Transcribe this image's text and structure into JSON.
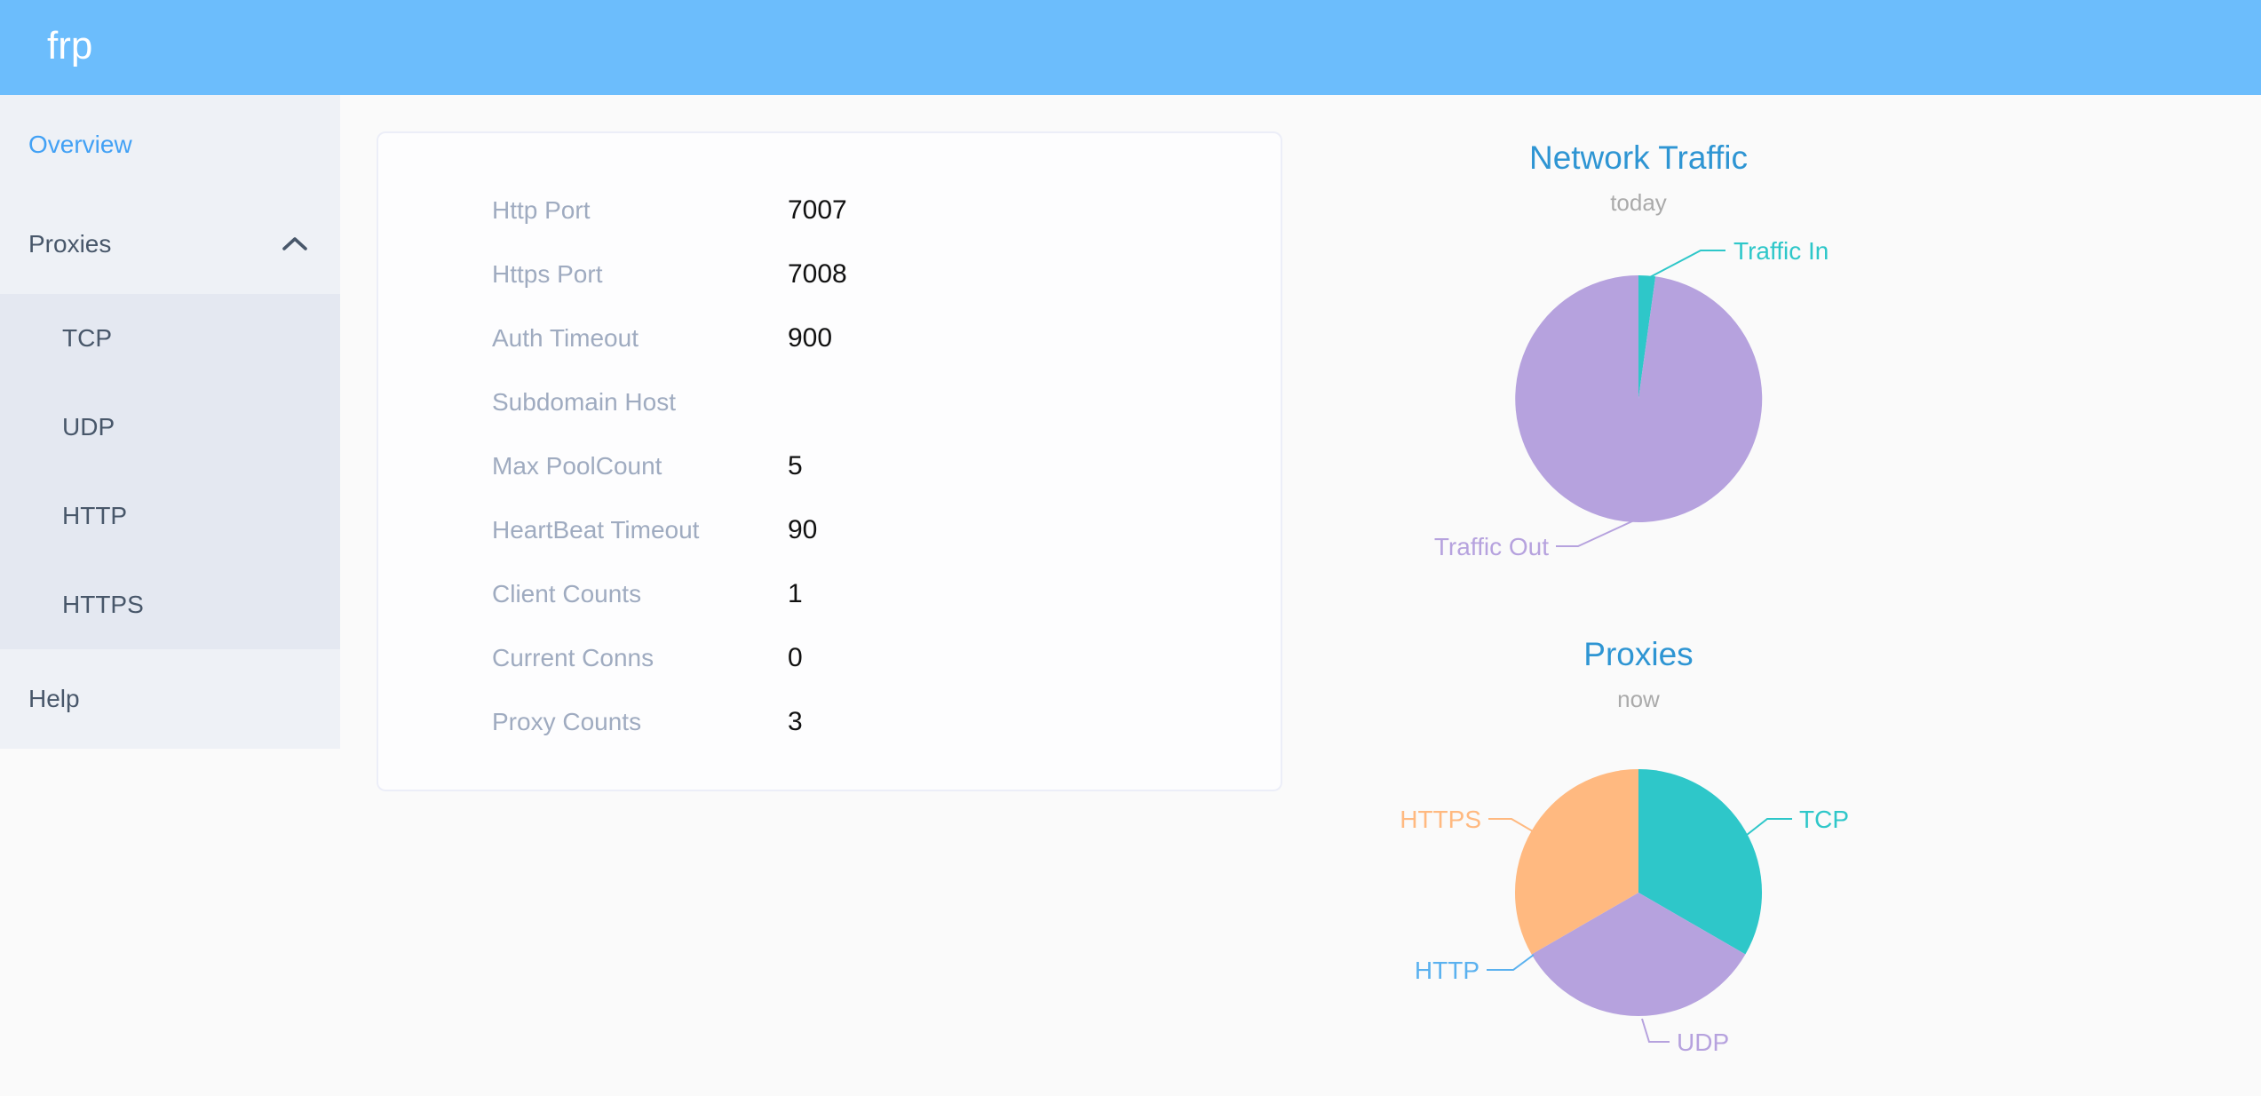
{
  "header": {
    "logo": "frp"
  },
  "sidebar": {
    "items": [
      {
        "label": "Overview",
        "active": true
      },
      {
        "label": "Proxies",
        "expanded": true,
        "children": [
          {
            "label": "TCP"
          },
          {
            "label": "UDP"
          },
          {
            "label": "HTTP"
          },
          {
            "label": "HTTPS"
          }
        ]
      },
      {
        "label": "Help"
      }
    ]
  },
  "server_info": {
    "rows": [
      {
        "label": "Http Port",
        "value": "7007"
      },
      {
        "label": "Https Port",
        "value": "7008"
      },
      {
        "label": "Auth Timeout",
        "value": "900"
      },
      {
        "label": "Subdomain Host",
        "value": ""
      },
      {
        "label": "Max PoolCount",
        "value": "5"
      },
      {
        "label": "HeartBeat Timeout",
        "value": "90"
      },
      {
        "label": "Client Counts",
        "value": "1"
      },
      {
        "label": "Current Conns",
        "value": "0"
      },
      {
        "label": "Proxy Counts",
        "value": "3"
      }
    ]
  },
  "chart_data": [
    {
      "type": "pie",
      "title": "Network Traffic",
      "subtitle": "today",
      "labels": [
        "Traffic In",
        "Traffic Out"
      ],
      "values": [
        2.2,
        97.8
      ],
      "colors": [
        "#2ec7c9",
        "#b6a2de"
      ],
      "start_angle": "top",
      "direction": "clockwise",
      "legend_position": "callout-labels"
    },
    {
      "type": "pie",
      "title": "Proxies",
      "subtitle": "now",
      "labels": [
        "TCP",
        "UDP",
        "HTTP",
        "HTTPS"
      ],
      "values": [
        1,
        1,
        0,
        1
      ],
      "colors": [
        "#2ec7c9",
        "#b6a2de",
        "#5ab1ef",
        "#ffb980"
      ],
      "start_angle": "top",
      "direction": "clockwise",
      "legend_position": "callout-labels"
    }
  ],
  "colors": {
    "header_background": "#6cbdfc",
    "sidebar_background": "#eef1f6",
    "submenu_background": "#e4e8f1",
    "sidebar_text": "#48576a",
    "sidebar_active": "#42a1f5",
    "chart_title": "#2e95d3",
    "chart_subtitle": "#aaaaaa",
    "info_label": "#9fabc0",
    "info_value": "#111111"
  }
}
